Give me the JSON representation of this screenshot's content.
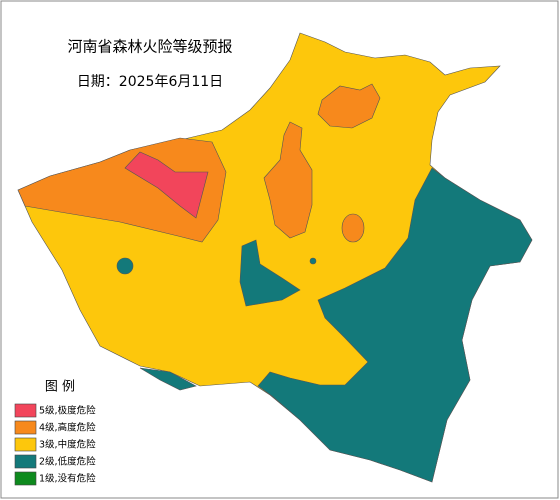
{
  "title": "河南省森林火险等级预报",
  "date": "日期：2025年6月11日",
  "legend": {
    "title": "图 例",
    "items": [
      {
        "label": "5级,极度危险",
        "color": "#f2455b"
      },
      {
        "label": "4级,高度危险",
        "color": "#f7891c"
      },
      {
        "label": "3级,中度危险",
        "color": "#fdc70c"
      },
      {
        "label": "2级,低度危险",
        "color": "#13797a"
      },
      {
        "label": "1级,没有危险",
        "color": "#0e8a1e"
      }
    ]
  }
}
